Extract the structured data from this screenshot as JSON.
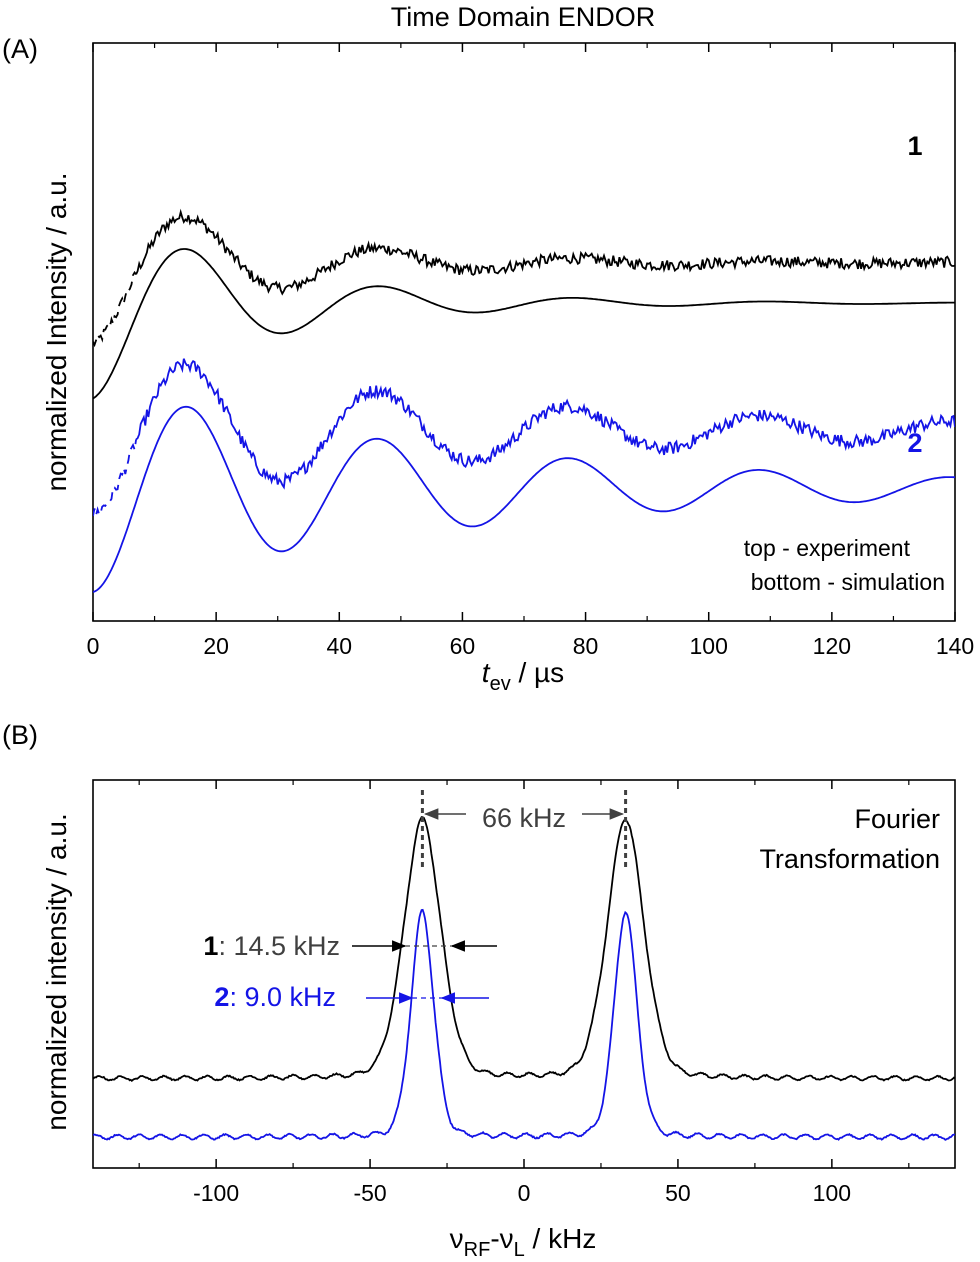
{
  "colors": {
    "series1": "#000000",
    "series2": "#1414e6",
    "annotation": "#404040"
  },
  "chart_data": [
    {
      "panel_label": "(A)",
      "type": "line",
      "title": "Time Domain ENDOR",
      "xlabel_main": "t",
      "xlabel_sub": "ev",
      "xlabel_tail": " / µs",
      "ylabel": "normalized Intensity / a.u.",
      "xlim": [
        0,
        140
      ],
      "xticks": [
        "0",
        "20",
        "40",
        "60",
        "80",
        "100",
        "120",
        "140"
      ],
      "series_labels": [
        "1",
        "2"
      ],
      "legend_lines": [
        "top - experiment",
        "bottom - simulation"
      ],
      "series": [
        {
          "name": "1 experiment",
          "color": "series1",
          "offset": 0.62,
          "amp": 0.28,
          "period": 31.5,
          "decay": 27,
          "noise": 0.012,
          "start": 0.04,
          "phase0": 14.8
        },
        {
          "name": "1 simulation",
          "color": "series1",
          "offset": 0.55,
          "amp": 0.33,
          "period": 31.5,
          "decay": 27,
          "noise": 0,
          "start": 0.06,
          "phase0": 14.8
        },
        {
          "name": "2 experiment",
          "color": "series2",
          "offset": 0.33,
          "amp": 0.29,
          "period": 31,
          "decay": 62,
          "noise": 0.014,
          "start": 0.0,
          "phase0": 14.8
        },
        {
          "name": "2 simulation",
          "color": "series2",
          "offset": 0.23,
          "amp": 0.36,
          "period": 31,
          "decay": 62,
          "noise": 0,
          "start": 0.0,
          "phase0": 14.8
        }
      ]
    },
    {
      "panel_label": "(B)",
      "type": "line",
      "title": "Fourier Transformation",
      "title_lines": [
        "Fourier",
        "Transformation"
      ],
      "xlabel": "νRF-νL / kHz",
      "ylabel": "normalized intensity / a.u.",
      "xlim": [
        -140,
        140
      ],
      "xticks": [
        "-100",
        "-50",
        "0",
        "50",
        "100"
      ],
      "peak_positions": [
        -33,
        33
      ],
      "annotations": {
        "splitting": "66 kHz",
        "width1_label": "1",
        "width1_value": ": 14.5 kHz",
        "width2_label": "2",
        "width2_value": ": 9.0 kHz"
      },
      "series": [
        {
          "name": "1",
          "color": "series1",
          "baseline": 0.18,
          "peak_height": 1.0,
          "fwhm_khz": 14.5
        },
        {
          "name": "2",
          "color": "series2",
          "baseline": 0.0,
          "peak_height": 0.88,
          "fwhm_khz": 9.0
        }
      ]
    }
  ]
}
